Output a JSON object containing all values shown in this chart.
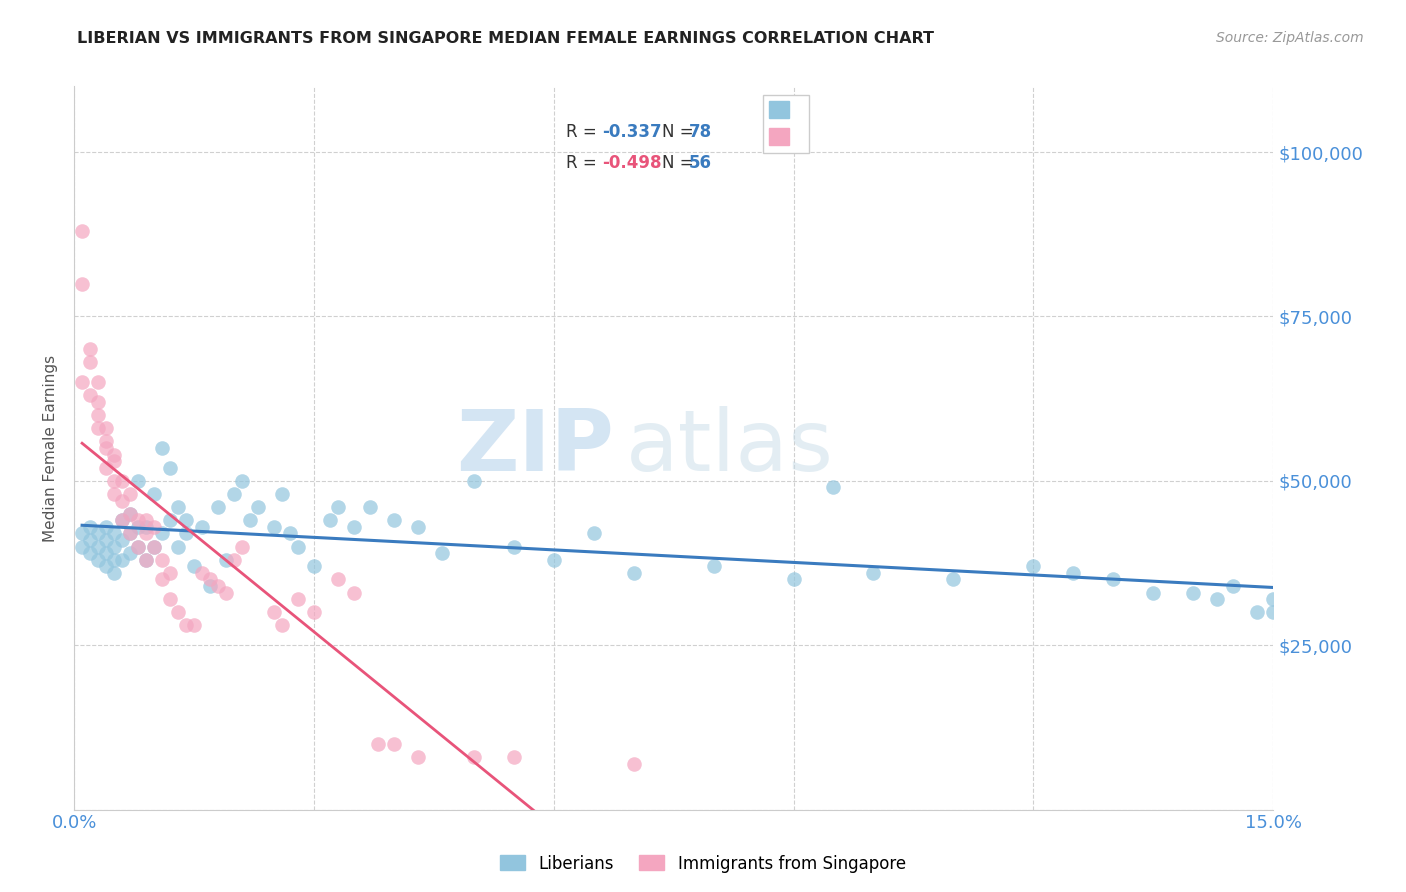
{
  "title": "LIBERIAN VS IMMIGRANTS FROM SINGAPORE MEDIAN FEMALE EARNINGS CORRELATION CHART",
  "source": "Source: ZipAtlas.com",
  "ylabel": "Median Female Earnings",
  "xlim": [
    0.0,
    0.15
  ],
  "ylim": [
    0,
    110000
  ],
  "yticks": [
    0,
    25000,
    50000,
    75000,
    100000
  ],
  "ytick_labels": [
    "",
    "$25,000",
    "$50,000",
    "$75,000",
    "$100,000"
  ],
  "watermark_zip": "ZIP",
  "watermark_atlas": "atlas",
  "blue_color": "#92c5de",
  "pink_color": "#f4a6c0",
  "trendline_blue": "#3a7bbf",
  "trendline_pink": "#e8547a",
  "tick_label_color": "#4a90d9",
  "grid_color": "#d0d0d0",
  "legend_R_blue": "#3a7bbf",
  "legend_R_pink": "#e8547a",
  "legend_N_color": "#3a7bbf",
  "R_blue": "-0.337",
  "N_blue": "78",
  "R_pink": "-0.498",
  "N_pink": "56",
  "blue_scatter_x": [
    0.001,
    0.001,
    0.002,
    0.002,
    0.002,
    0.003,
    0.003,
    0.003,
    0.004,
    0.004,
    0.004,
    0.004,
    0.005,
    0.005,
    0.005,
    0.005,
    0.006,
    0.006,
    0.006,
    0.007,
    0.007,
    0.007,
    0.008,
    0.008,
    0.008,
    0.009,
    0.009,
    0.01,
    0.01,
    0.011,
    0.011,
    0.012,
    0.012,
    0.013,
    0.013,
    0.014,
    0.014,
    0.015,
    0.016,
    0.017,
    0.018,
    0.019,
    0.02,
    0.021,
    0.022,
    0.023,
    0.025,
    0.026,
    0.027,
    0.028,
    0.03,
    0.032,
    0.033,
    0.035,
    0.037,
    0.04,
    0.043,
    0.046,
    0.05,
    0.055,
    0.06,
    0.065,
    0.07,
    0.08,
    0.09,
    0.095,
    0.1,
    0.11,
    0.12,
    0.125,
    0.13,
    0.135,
    0.14,
    0.143,
    0.145,
    0.148,
    0.15,
    0.15
  ],
  "blue_scatter_y": [
    42000,
    40000,
    41000,
    39000,
    43000,
    40000,
    38000,
    42000,
    39000,
    41000,
    43000,
    37000,
    40000,
    38000,
    42000,
    36000,
    44000,
    41000,
    38000,
    45000,
    42000,
    39000,
    50000,
    43000,
    40000,
    43000,
    38000,
    48000,
    40000,
    55000,
    42000,
    52000,
    44000,
    46000,
    40000,
    44000,
    42000,
    37000,
    43000,
    34000,
    46000,
    38000,
    48000,
    50000,
    44000,
    46000,
    43000,
    48000,
    42000,
    40000,
    37000,
    44000,
    46000,
    43000,
    46000,
    44000,
    43000,
    39000,
    50000,
    40000,
    38000,
    42000,
    36000,
    37000,
    35000,
    49000,
    36000,
    35000,
    37000,
    36000,
    35000,
    33000,
    33000,
    32000,
    34000,
    30000,
    30000,
    32000
  ],
  "pink_scatter_x": [
    0.001,
    0.001,
    0.001,
    0.002,
    0.002,
    0.002,
    0.003,
    0.003,
    0.003,
    0.003,
    0.004,
    0.004,
    0.004,
    0.004,
    0.005,
    0.005,
    0.005,
    0.005,
    0.006,
    0.006,
    0.006,
    0.007,
    0.007,
    0.007,
    0.008,
    0.008,
    0.009,
    0.009,
    0.009,
    0.01,
    0.01,
    0.011,
    0.011,
    0.012,
    0.012,
    0.013,
    0.014,
    0.015,
    0.016,
    0.017,
    0.018,
    0.019,
    0.02,
    0.021,
    0.025,
    0.026,
    0.028,
    0.03,
    0.033,
    0.035,
    0.038,
    0.04,
    0.043,
    0.05,
    0.055,
    0.07
  ],
  "pink_scatter_y": [
    88000,
    80000,
    65000,
    70000,
    63000,
    68000,
    65000,
    60000,
    58000,
    62000,
    55000,
    58000,
    52000,
    56000,
    53000,
    50000,
    48000,
    54000,
    47000,
    50000,
    44000,
    45000,
    48000,
    42000,
    44000,
    40000,
    42000,
    38000,
    44000,
    40000,
    43000,
    38000,
    35000,
    36000,
    32000,
    30000,
    28000,
    28000,
    36000,
    35000,
    34000,
    33000,
    38000,
    40000,
    30000,
    28000,
    32000,
    30000,
    35000,
    33000,
    10000,
    10000,
    8000,
    8000,
    8000,
    7000
  ]
}
